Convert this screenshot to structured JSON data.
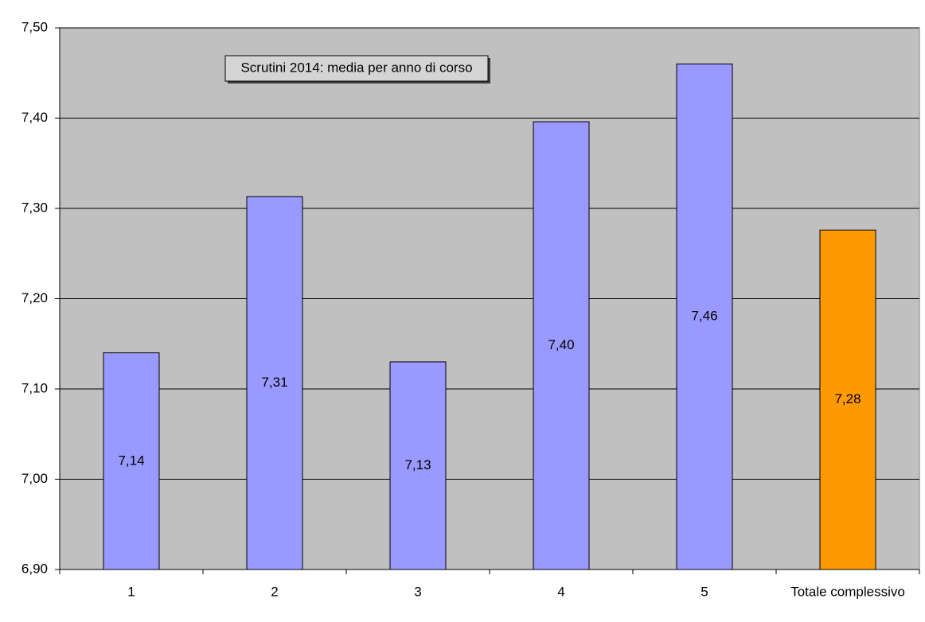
{
  "chart_data": {
    "type": "bar",
    "title": "Scrutini 2014: media per anno di corso",
    "categories": [
      "1",
      "2",
      "3",
      "4",
      "5",
      "Totale complessivo"
    ],
    "values": [
      7.14,
      7.313,
      7.13,
      7.396,
      7.46,
      7.276
    ],
    "value_labels": [
      "7,14",
      "7,31",
      "7,13",
      "7,40",
      "7,46",
      "7,28"
    ],
    "colors": [
      "#9999ff",
      "#9999ff",
      "#9999ff",
      "#9999ff",
      "#9999ff",
      "#ff9900"
    ],
    "ylim": [
      6.9,
      7.5
    ],
    "yticks": [
      {
        "value": 6.9,
        "label": "6,90"
      },
      {
        "value": 7.0,
        "label": "7,00"
      },
      {
        "value": 7.1,
        "label": "7,10"
      },
      {
        "value": 7.2,
        "label": "7,20"
      },
      {
        "value": 7.3,
        "label": "7,30"
      },
      {
        "value": 7.4,
        "label": "7,40"
      },
      {
        "value": 7.5,
        "label": "7,50"
      }
    ],
    "grid": true
  }
}
